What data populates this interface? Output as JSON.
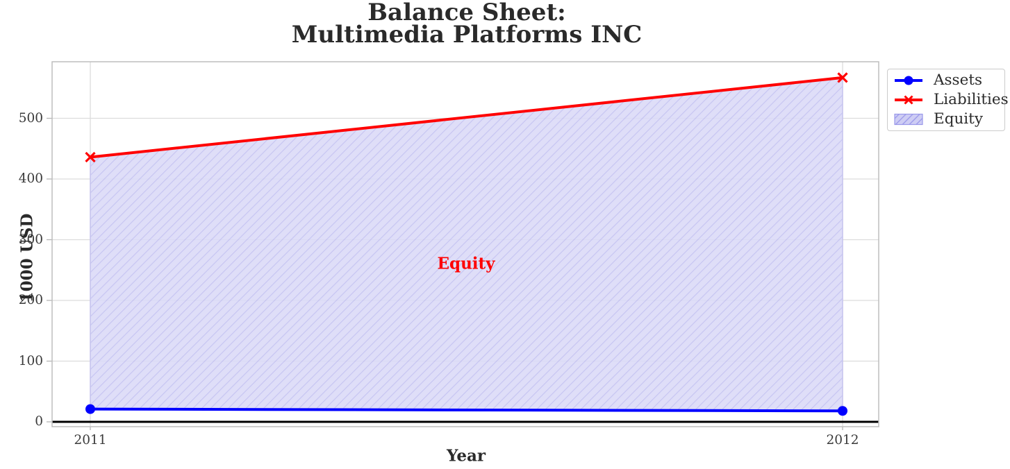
{
  "chart_data": {
    "type": "line",
    "title_lines": [
      "Balance Sheet:",
      "Multimedia Platforms INC"
    ],
    "xlabel": "Year",
    "ylabel": "1000 USD",
    "x": [
      2011,
      2012
    ],
    "xtick_labels": [
      "2011",
      "2012"
    ],
    "yticks": [
      0,
      100,
      200,
      300,
      400,
      500
    ],
    "ylim": [
      -8,
      593
    ],
    "grid": true,
    "legend_position": "outside upper right",
    "series": [
      {
        "name": "Assets",
        "color": "#0000ff",
        "marker": "circle",
        "values": [
          21,
          18
        ]
      },
      {
        "name": "Liabilities",
        "color": "#ff0000",
        "marker": "x",
        "values": [
          436,
          567
        ]
      }
    ],
    "fill_between": {
      "label": "Equity",
      "between": [
        "Assets",
        "Liabilities"
      ],
      "hatch": "/",
      "fill_color": "#dbdaf7",
      "hatch_line_color": "#bfbdf0",
      "edge_color": "#c6c4ef",
      "legend_fill_color": "#cecdf4",
      "legend_hatch_color": "#9a98ea"
    },
    "annotation": {
      "text": "Equity",
      "color": "#ff0000",
      "x": 2011.5,
      "y": 263
    },
    "zero_line": {
      "y": 0,
      "color": "#000000"
    }
  }
}
